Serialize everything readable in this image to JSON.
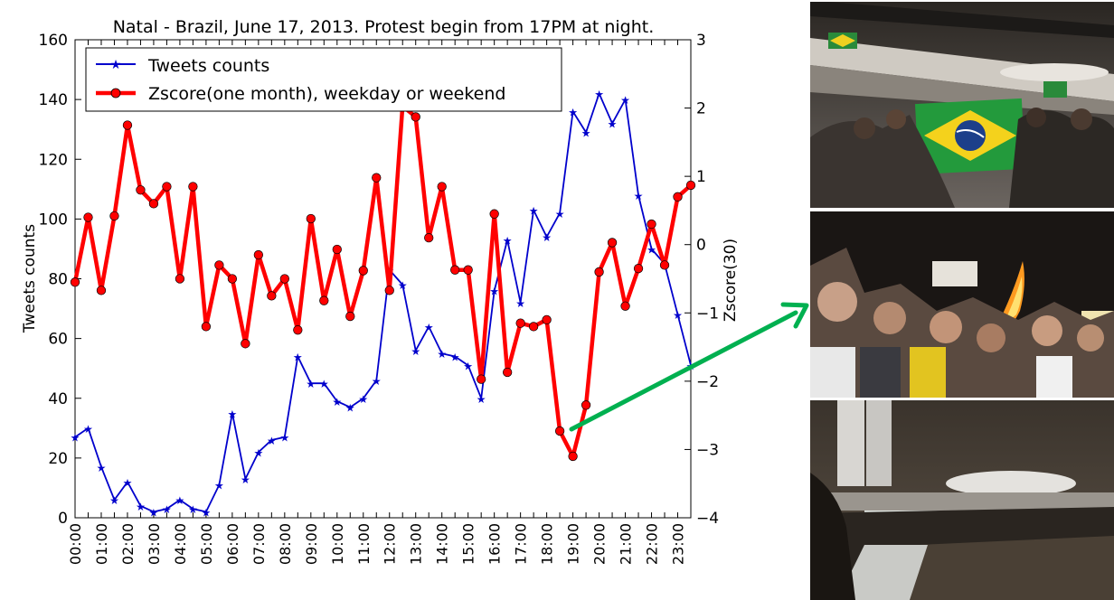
{
  "chart_data": {
    "type": "line",
    "title": "Natal - Brazil, June 17, 2013. Protest begin from 17PM at night.",
    "ylabel": "Tweets counts",
    "y2label": "Zscore(30)",
    "ylim": [
      0,
      160
    ],
    "y2lim": [
      -4,
      3
    ],
    "yticks": [
      "0",
      "20",
      "40",
      "60",
      "80",
      "100",
      "120",
      "140",
      "160"
    ],
    "y2ticks": [
      "−4",
      "−3",
      "−2",
      "−1",
      "0",
      "1",
      "2",
      "3"
    ],
    "xticks": [
      "00:00",
      "01:00",
      "02:00",
      "03:00",
      "04:00",
      "05:00",
      "06:00",
      "07:00",
      "08:00",
      "09:00",
      "10:00",
      "11:00",
      "12:00",
      "13:00",
      "14:00",
      "15:00",
      "16:00",
      "17:00",
      "18:00",
      "19:00",
      "20:00",
      "21:00",
      "22:00",
      "23:00"
    ],
    "x_interval_minutes": 30,
    "legend_position": "top-left",
    "grid": false,
    "series": [
      {
        "name": "Tweets counts",
        "axis": "left",
        "color": "#0000cc",
        "marker": "star",
        "values": [
          27,
          30,
          17,
          6,
          12,
          4,
          2,
          3,
          6,
          3,
          2,
          11,
          35,
          13,
          22,
          26,
          27,
          54,
          45,
          45,
          39,
          37,
          40,
          46,
          83,
          78,
          56,
          64,
          55,
          54,
          51,
          40,
          76,
          93,
          72,
          103,
          94,
          102,
          136,
          129,
          142,
          132,
          140,
          108,
          90,
          85,
          68,
          51
        ]
      },
      {
        "name": "Zscore(one month), weekday or weekend",
        "axis": "right",
        "color": "#ff0000",
        "marker": "circle",
        "values": [
          -0.55,
          0.4,
          -0.67,
          0.42,
          1.75,
          0.8,
          0.6,
          0.85,
          -0.5,
          0.85,
          -1.2,
          -0.3,
          -0.5,
          -1.45,
          -0.15,
          -0.75,
          -0.5,
          -1.25,
          0.38,
          -0.82,
          -0.07,
          -1.05,
          -0.38,
          0.98,
          -0.67,
          2.03,
          1.87,
          0.1,
          0.85,
          -0.37,
          -0.37,
          -1.97,
          0.45,
          -1.87,
          -1.15,
          -1.2,
          -1.1,
          -2.73,
          -3.1,
          -2.35,
          -0.4,
          0.03,
          -0.9,
          -0.35,
          0.3,
          -0.3,
          0.7,
          0.87
        ]
      }
    ]
  },
  "photos": [
    {
      "name": "protest-photo-flag"
    },
    {
      "name": "protest-photo-fire"
    },
    {
      "name": "protest-photo-crowd"
    }
  ],
  "annotation": {
    "arrow_color": "#00b050"
  }
}
